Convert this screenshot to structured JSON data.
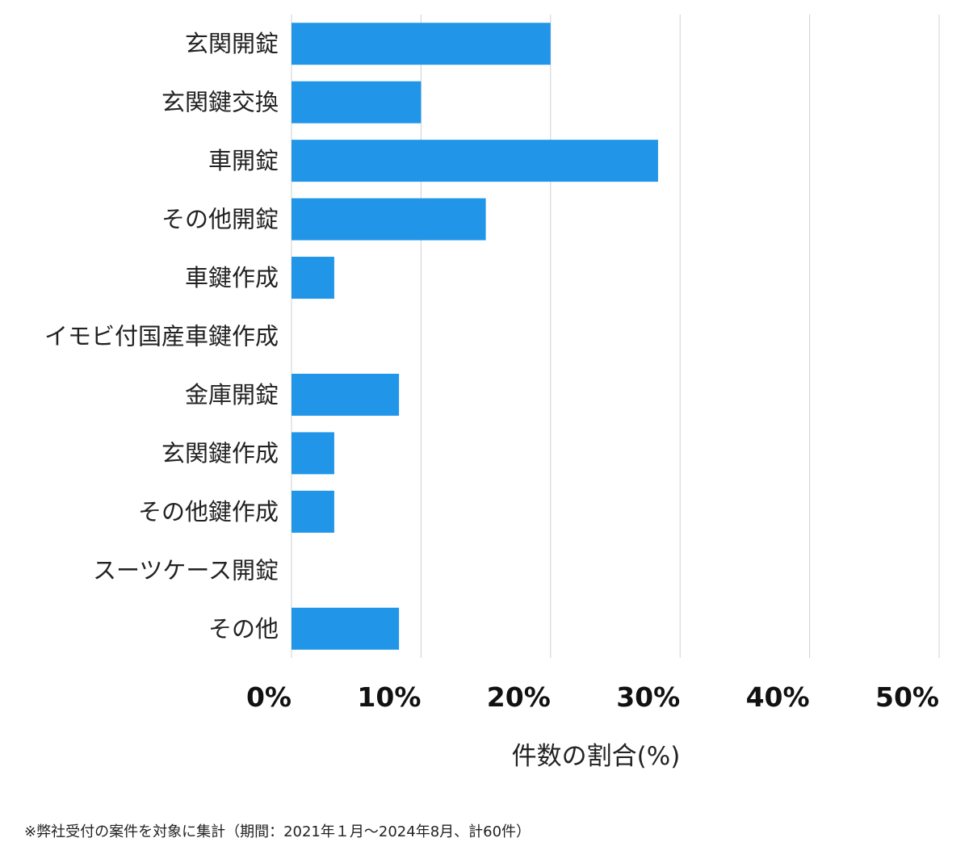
{
  "chart_data": {
    "type": "bar",
    "orientation": "horizontal",
    "categories": [
      "玄関開錠",
      "玄関鍵交換",
      "車開錠",
      "その他開錠",
      "車鍵作成",
      "イモビ付国産車鍵作成",
      "金庫開錠",
      "玄関鍵作成",
      "その他鍵作成",
      "スーツケース開錠",
      "その他"
    ],
    "values": [
      20.0,
      10.0,
      28.3,
      15.0,
      3.3,
      0,
      8.3,
      3.3,
      3.3,
      0,
      8.3
    ],
    "xlabel": "件数の割合(%)",
    "ylabel": "",
    "xlim": [
      0,
      50
    ],
    "xticks": [
      "0%",
      "10%",
      "20%",
      "30%",
      "40%",
      "50%"
    ],
    "grid": true,
    "bar_color": "#2196e8",
    "grid_color": "#d0d0d0"
  },
  "footnote": "※弊社受付の案件を対象に集計（期間：2021年１月〜2024年8月、計60件）"
}
